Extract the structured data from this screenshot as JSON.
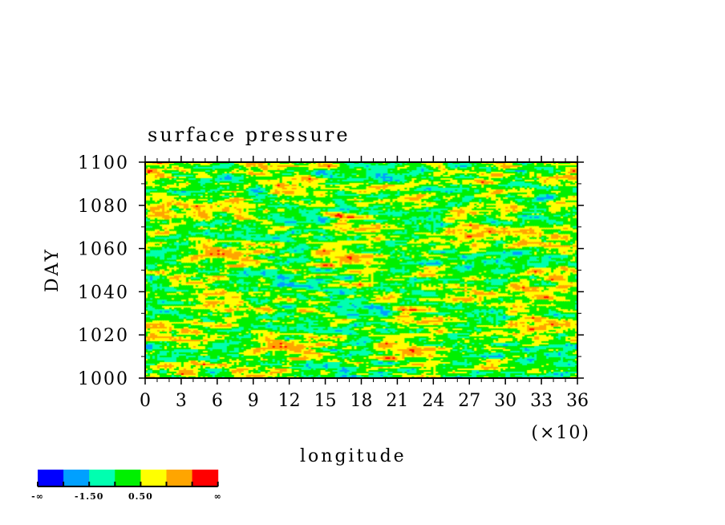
{
  "chart_data": {
    "type": "heatmap",
    "title": "surface pressure",
    "xlabel": "longitude",
    "ylabel": "DAY",
    "x_scale_note": "(×10)",
    "xlim": [
      0,
      36
    ],
    "ylim": [
      1000,
      1100
    ],
    "x_ticks": [
      "0",
      "3",
      "6",
      "9",
      "12",
      "15",
      "18",
      "21",
      "24",
      "27",
      "30",
      "33",
      "36"
    ],
    "y_ticks": [
      "1000",
      "1020",
      "1040",
      "1060",
      "1080",
      "1100"
    ],
    "colorbar": {
      "colors": [
        "#0000ff",
        "#00a0ff",
        "#00ffb0",
        "#00f000",
        "#ffff00",
        "#ffa500",
        "#ff0000"
      ],
      "labels": [
        "-∞",
        "-1.50",
        "0.50",
        "∞"
      ],
      "label_positions": [
        0,
        2,
        4,
        7
      ]
    },
    "field_description": "streaky zonally-elongated anomalies, mostly green/yellow/cyan with scattered blue and red patches"
  }
}
